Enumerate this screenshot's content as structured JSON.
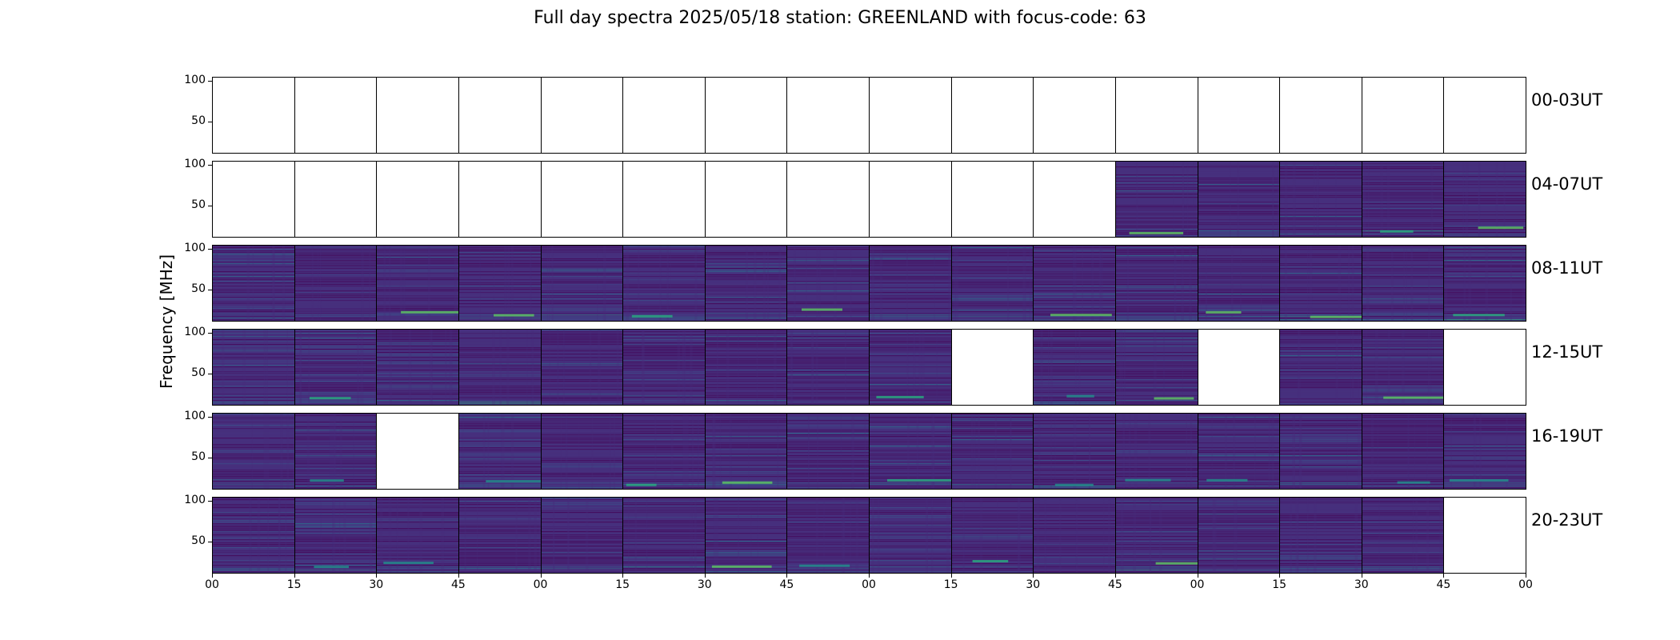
{
  "figure": {
    "title": "Full day spectra 2025/05/18 station: GREENLAND with focus-code: 63",
    "ylabel": "Frequency [MHz]"
  },
  "chart_data": {
    "type": "heatmap",
    "title": "Full day spectra 2025/05/18 station: GREENLAND with focus-code: 63",
    "xlabel": "",
    "ylabel": "Frequency [MHz]",
    "ylim": [
      10,
      105
    ],
    "y_ticks": [
      "100",
      "50"
    ],
    "x_tick_labels": [
      "00",
      "15",
      "30",
      "45",
      "00",
      "15",
      "30",
      "45",
      "00",
      "15",
      "30",
      "45",
      "00",
      "15",
      "30",
      "45",
      "00"
    ],
    "row_labels": [
      "00-03UT",
      "04-07UT",
      "08-11UT",
      "12-15UT",
      "16-19UT",
      "20-23UT"
    ],
    "panels_per_row": 16,
    "panel_minutes": 15,
    "colormap": [
      "#440154",
      "#472d7b",
      "#3b528b",
      "#2c728e",
      "#21918c",
      "#28ae80",
      "#5ec962",
      "#addc30",
      "#fde725"
    ],
    "has_data": [
      [
        0,
        0,
        0,
        0,
        0,
        0,
        0,
        0,
        0,
        0,
        0,
        0,
        0,
        0,
        0,
        0
      ],
      [
        0,
        0,
        0,
        0,
        0,
        0,
        0,
        0,
        0,
        0,
        0,
        1,
        1,
        1,
        1,
        1
      ],
      [
        1,
        1,
        1,
        1,
        1,
        1,
        1,
        1,
        1,
        1,
        1,
        1,
        1,
        1,
        1,
        1
      ],
      [
        1,
        1,
        1,
        1,
        1,
        1,
        1,
        1,
        1,
        0,
        1,
        1,
        0,
        1,
        1,
        0
      ],
      [
        1,
        1,
        0,
        1,
        1,
        1,
        1,
        1,
        1,
        1,
        1,
        1,
        1,
        1,
        1,
        1
      ],
      [
        1,
        1,
        1,
        1,
        1,
        1,
        1,
        1,
        1,
        1,
        1,
        1,
        1,
        1,
        1,
        0
      ]
    ]
  }
}
